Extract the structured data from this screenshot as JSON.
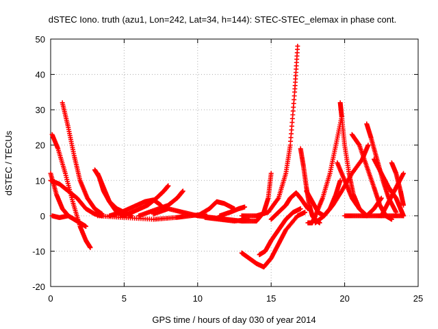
{
  "chart_data": {
    "type": "scatter",
    "title": "dSTEC Iono. truth (azu1, Lon=242, Lat=34, h=144): STEC-STEC_elemax in phase cont.",
    "xlabel": "GPS time / hours of day 030 of year 2014",
    "ylabel": "dSTEC  / TECUs",
    "xlim": [
      0,
      25
    ],
    "ylim": [
      -20,
      50
    ],
    "xticks": [
      0,
      5,
      10,
      15,
      20,
      25
    ],
    "yticks": [
      -20,
      -10,
      0,
      10,
      20,
      30,
      40,
      50
    ],
    "grid": true,
    "marker": "plus",
    "color": "#ff0000",
    "series": [
      {
        "x": [
          0.0,
          0.4,
          0.8,
          1.2,
          1.6,
          2.0,
          2.4
        ],
        "y": [
          12,
          6,
          2,
          0,
          -1,
          -2,
          -3
        ]
      },
      {
        "x": [
          0.1,
          0.5,
          1.0,
          1.5,
          2.0,
          2.4,
          2.7
        ],
        "y": [
          23,
          19,
          12,
          4,
          -3,
          -7,
          -9
        ]
      },
      {
        "x": [
          0.8,
          1.2,
          1.6,
          2.0,
          2.5,
          3.0,
          3.5
        ],
        "y": [
          32,
          25,
          17,
          10,
          5,
          2,
          0.5
        ]
      },
      {
        "x": [
          0.0,
          0.6,
          1.2,
          1.8,
          2.4,
          3.0,
          3.5
        ],
        "y": [
          10,
          9,
          7,
          5,
          2,
          0.5,
          0
        ]
      },
      {
        "x": [
          0.1,
          0.6,
          1.2
        ],
        "y": [
          0,
          -0.5,
          0
        ]
      },
      {
        "x": [
          3.0,
          3.3,
          3.6,
          4.0,
          4.5,
          5.0
        ],
        "y": [
          13,
          11,
          7,
          4,
          1,
          0
        ]
      },
      {
        "x": [
          3.2,
          3.6,
          4.0,
          4.5,
          5.0,
          5.5
        ],
        "y": [
          12,
          8,
          4,
          2,
          1,
          0
        ]
      },
      {
        "x": [
          4.0,
          4.8,
          5.6,
          6.4,
          7.0,
          7.5
        ],
        "y": [
          0,
          1,
          2.5,
          4,
          4.5,
          3
        ]
      },
      {
        "x": [
          5.0,
          5.8,
          6.6,
          7.2,
          7.7,
          8.0
        ],
        "y": [
          0,
          1.5,
          3,
          5,
          7,
          8.5
        ]
      },
      {
        "x": [
          6.0,
          7.0,
          8.0,
          8.6,
          9.0
        ],
        "y": [
          0,
          1.5,
          3,
          5,
          7
        ]
      },
      {
        "x": [
          3.2,
          5.0,
          7.0,
          8.5,
          9.5,
          10.5
        ],
        "y": [
          0,
          -0.5,
          -1,
          -0.5,
          0,
          0.5
        ]
      },
      {
        "x": [
          7.0,
          8.0,
          9.0,
          10.0,
          11.0,
          12.0
        ],
        "y": [
          0.5,
          2,
          1,
          0,
          -0.5,
          -1
        ]
      },
      {
        "x": [
          10.0,
          10.8,
          11.3,
          11.8,
          12.5
        ],
        "y": [
          0,
          2,
          4,
          3.5,
          2
        ]
      },
      {
        "x": [
          10.5,
          11.5,
          12.5,
          13.5
        ],
        "y": [
          -0.5,
          -1,
          -1.5,
          -1
        ]
      },
      {
        "x": [
          11.5,
          12.2,
          12.8,
          13.2
        ],
        "y": [
          0,
          1,
          2,
          2.5
        ]
      },
      {
        "x": [
          12.0,
          13.0,
          14.0,
          14.5,
          14.8,
          15.0
        ],
        "y": [
          -1,
          -1.5,
          -1.5,
          1,
          5,
          12
        ]
      },
      {
        "x": [
          13.0,
          14.0,
          14.8,
          15.5,
          16.0,
          16.3,
          16.6,
          16.8
        ],
        "y": [
          0,
          0,
          1,
          5,
          12,
          20,
          35,
          48
        ]
      },
      {
        "x": [
          13.0,
          13.5,
          14.0,
          14.5,
          15.0,
          15.5,
          16.0,
          16.8,
          17.3
        ],
        "y": [
          -10.5,
          -12,
          -13.5,
          -14.5,
          -12,
          -8,
          -4,
          0,
          1
        ]
      },
      {
        "x": [
          14.2,
          14.6,
          15.0,
          15.5,
          16.0,
          16.5,
          17.0
        ],
        "y": [
          -11,
          -10,
          -7,
          -4,
          -1,
          1,
          2
        ]
      },
      {
        "x": [
          15.0,
          15.5,
          16.0,
          16.3,
          16.7,
          17.0,
          17.5
        ],
        "y": [
          -1,
          1,
          3,
          5,
          6.5,
          5,
          2
        ]
      },
      {
        "x": [
          17.0,
          17.2,
          17.4,
          17.6,
          17.8,
          18.0,
          18.3
        ],
        "y": [
          19,
          14,
          8,
          3,
          0,
          -1,
          -2
        ]
      },
      {
        "x": [
          17.5,
          17.8,
          18.0,
          18.5,
          19.0,
          19.4,
          19.8
        ],
        "y": [
          -2,
          -2,
          0,
          5,
          12,
          20,
          28
        ]
      },
      {
        "x": [
          17.4,
          17.8,
          18.2,
          18.6,
          19.0,
          19.4,
          19.7
        ],
        "y": [
          7,
          4,
          1,
          0,
          2,
          6,
          10
        ]
      },
      {
        "x": [
          19.7,
          19.8,
          20.0,
          20.3,
          20.6,
          21.0,
          21.5
        ],
        "y": [
          32,
          28,
          20,
          12,
          6,
          2,
          0
        ]
      },
      {
        "x": [
          18.0,
          18.6,
          19.2,
          19.8,
          20.5,
          21.2,
          21.6
        ],
        "y": [
          -2,
          0,
          3,
          7,
          12,
          16,
          20
        ]
      },
      {
        "x": [
          19.5,
          20.0,
          20.5,
          21.0,
          21.5,
          22.0,
          22.5
        ],
        "y": [
          15,
          10,
          5,
          2,
          0,
          2,
          5
        ]
      },
      {
        "x": [
          20.5,
          21.0,
          21.5,
          22.0,
          22.4,
          22.8,
          23.2
        ],
        "y": [
          23,
          20,
          14,
          8,
          3,
          0,
          -1
        ]
      },
      {
        "x": [
          21.5,
          21.8,
          22.2,
          22.6,
          23.0,
          23.5
        ],
        "y": [
          26,
          22,
          16,
          10,
          5,
          1
        ]
      },
      {
        "x": [
          22.0,
          22.5,
          23.0,
          23.5,
          23.8,
          24.0
        ],
        "y": [
          16,
          12,
          8,
          5,
          2,
          0
        ]
      },
      {
        "x": [
          23.2,
          23.5,
          23.8,
          24.0
        ],
        "y": [
          15,
          12,
          7,
          3
        ]
      },
      {
        "x": [
          22.5,
          23.0,
          23.5,
          24.0
        ],
        "y": [
          0,
          4,
          8,
          12
        ]
      },
      {
        "x": [
          20.0,
          21.0,
          22.0,
          23.0,
          24.0
        ],
        "y": [
          0,
          0,
          0,
          0,
          0
        ]
      }
    ]
  }
}
